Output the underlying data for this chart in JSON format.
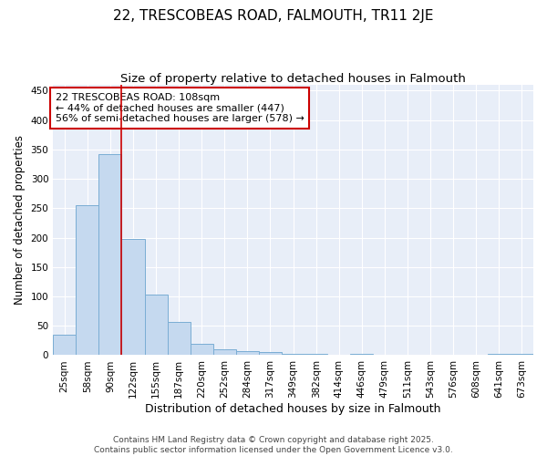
{
  "title": "22, TRESCOBEAS ROAD, FALMOUTH, TR11 2JE",
  "subtitle": "Size of property relative to detached houses in Falmouth",
  "xlabel": "Distribution of detached houses by size in Falmouth",
  "ylabel": "Number of detached properties",
  "categories": [
    "25sqm",
    "58sqm",
    "90sqm",
    "122sqm",
    "155sqm",
    "187sqm",
    "220sqm",
    "252sqm",
    "284sqm",
    "317sqm",
    "349sqm",
    "382sqm",
    "414sqm",
    "446sqm",
    "479sqm",
    "511sqm",
    "543sqm",
    "576sqm",
    "608sqm",
    "641sqm",
    "673sqm"
  ],
  "values": [
    35,
    255,
    342,
    198,
    103,
    57,
    20,
    10,
    7,
    5,
    3,
    2,
    0,
    3,
    0,
    0,
    0,
    0,
    0,
    3,
    3
  ],
  "bar_color": "#c5d9ef",
  "bar_edge_color": "#7aadd4",
  "vline_x": 2.5,
  "vline_color": "#cc0000",
  "annotation_text": "22 TRESCOBEAS ROAD: 108sqm\n← 44% of detached houses are smaller (447)\n56% of semi-detached houses are larger (578) →",
  "annotation_box_color": "white",
  "annotation_box_edge_color": "#cc0000",
  "ylim": [
    0,
    460
  ],
  "yticks": [
    0,
    50,
    100,
    150,
    200,
    250,
    300,
    350,
    400,
    450
  ],
  "footnote": "Contains HM Land Registry data © Crown copyright and database right 2025.\nContains public sector information licensed under the Open Government Licence v3.0.",
  "bg_color": "#ffffff",
  "plot_bg_color": "#e8eef8",
  "grid_color": "#ffffff",
  "title_fontsize": 11,
  "subtitle_fontsize": 9.5,
  "xlabel_fontsize": 9,
  "ylabel_fontsize": 8.5,
  "tick_fontsize": 7.5,
  "annotation_fontsize": 8,
  "footnote_fontsize": 6.5
}
